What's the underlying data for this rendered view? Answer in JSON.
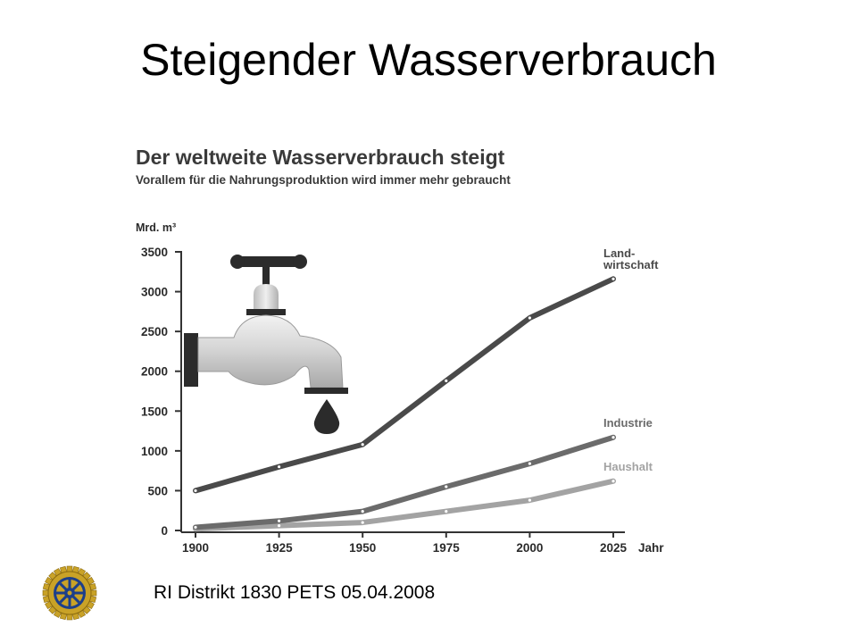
{
  "slide": {
    "title": "Steigender Wasserverbrauch",
    "footer": "RI Distrikt 1830 PETS 05.04.2008",
    "logo_icon": "rotary-wheel-icon"
  },
  "chart_data": {
    "type": "line",
    "title": "Der weltweite Wasserverbrauch steigt",
    "subtitle": "Vorallem für die Nahrungsproduktion wird immer mehr gebraucht",
    "ylabel": "Mrd. m³",
    "xlabel": "Jahr",
    "x": [
      1900,
      1925,
      1950,
      1975,
      2000,
      2025
    ],
    "ylim": [
      0,
      3500
    ],
    "yticks": [
      0,
      500,
      1000,
      1500,
      2000,
      2500,
      3000,
      3500
    ],
    "illustration": "water-tap-icon",
    "series": [
      {
        "name_line1": "Land-",
        "name_line2": "wirtschaft",
        "color": "#4a4a4a",
        "values": [
          500,
          800,
          1080,
          1880,
          2670,
          3160
        ]
      },
      {
        "name": "Industrie",
        "color": "#6b6b6b",
        "values": [
          40,
          120,
          240,
          550,
          840,
          1170
        ]
      },
      {
        "name": "Haushalt",
        "color": "#a3a3a3",
        "values": [
          20,
          60,
          100,
          240,
          380,
          620
        ]
      }
    ]
  }
}
